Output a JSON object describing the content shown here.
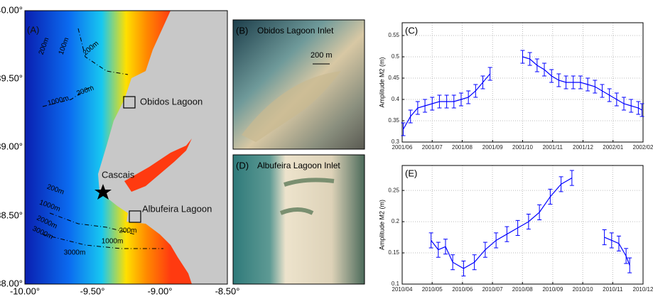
{
  "map": {
    "panel": "(A)",
    "places": [
      "Obidos Lagoon",
      "Cascais",
      "Albufeira Lagoon"
    ],
    "contours": [
      "200m",
      "100m",
      "200m",
      "200m",
      "1000m",
      "200m",
      "1000m",
      "2000m",
      "3000m",
      "200m",
      "1000m",
      "3000m"
    ],
    "x_labels": [
      "-10.00°",
      "-9.50°",
      "-9.00°",
      "-8.50°"
    ],
    "y_labels": [
      "40.00°",
      "39.50°",
      "39.00°",
      "38.50°",
      "38.00°"
    ]
  },
  "photos": [
    {
      "panel": "(B)",
      "title": "Obidos Lagoon Inlet",
      "scale": "200 m"
    },
    {
      "panel": "(D)",
      "title": "Albufeira Lagoon Inlet"
    }
  ],
  "chart_data": [
    {
      "type": "line",
      "panel": "(C)",
      "y_label": "Amplitude M2 (m)",
      "grid": true,
      "x": [
        2001.42,
        2001.44,
        2001.46,
        2001.48,
        2001.5,
        2001.52,
        2001.54,
        2001.56,
        2001.58,
        2001.6,
        2001.62,
        2001.64,
        2001.66,
        2001.7,
        2001.75,
        2001.77,
        2001.79,
        2001.81,
        2001.83,
        2001.85,
        2001.87,
        2001.89,
        2001.91,
        2001.93,
        2001.95,
        2001.97,
        2001.99,
        2002.01,
        2002.03,
        2002.05,
        2002.07,
        2002.08
      ],
      "series": [
        {
          "color": "#0000ff",
          "values": [
            0.33,
            0.36,
            0.38,
            0.385,
            0.39,
            0.395,
            0.395,
            0.395,
            0.4,
            0.405,
            0.42,
            0.44,
            0.46,
            null,
            0.5,
            0.495,
            0.48,
            0.47,
            0.455,
            0.445,
            0.44,
            0.44,
            0.44,
            0.435,
            0.43,
            0.42,
            0.41,
            0.4,
            0.39,
            0.385,
            0.38,
            0.375
          ],
          "errors": [
            0.015,
            0.015,
            0.015,
            0.015,
            0.015,
            0.015,
            0.015,
            0.015,
            0.015,
            0.015,
            0.015,
            0.015,
            0.015,
            null,
            0.015,
            0.015,
            0.015,
            0.015,
            0.015,
            0.015,
            0.015,
            0.015,
            0.015,
            0.015,
            0.015,
            0.015,
            0.015,
            0.015,
            0.015,
            0.015,
            0.015,
            0.015
          ]
        }
      ],
      "xlim": [
        2001.417,
        2002.083
      ],
      "ylim": [
        0.3,
        0.58
      ],
      "xticks": [
        {
          "value": 2001.417,
          "label": "2001/06"
        },
        {
          "value": 2001.5,
          "label": "2001/07"
        },
        {
          "value": 2001.583,
          "label": "2001/08"
        },
        {
          "value": 2001.667,
          "label": "2001/09"
        },
        {
          "value": 2001.75,
          "label": "2001/10"
        },
        {
          "value": 2001.833,
          "label": "2001/11"
        },
        {
          "value": 2001.917,
          "label": "2001/12"
        },
        {
          "value": 2002.0,
          "label": "2002/01"
        },
        {
          "value": 2002.083,
          "label": "2002/02"
        }
      ],
      "yticks": [
        0.3,
        0.35,
        0.4,
        0.45,
        0.5,
        0.55
      ]
    },
    {
      "type": "line",
      "panel": "(E)",
      "y_label": "Amplitude M2 (m)",
      "grid": true,
      "x": [
        2010.33,
        2010.35,
        2010.37,
        2010.39,
        2010.42,
        2010.45,
        2010.48,
        2010.51,
        2010.54,
        2010.57,
        2010.6,
        2010.63,
        2010.66,
        2010.69,
        2010.72,
        2010.77,
        2010.81,
        2010.83,
        2010.85,
        2010.87,
        2010.88
      ],
      "series": [
        {
          "color": "#0000ff",
          "values": [
            0.17,
            0.155,
            0.16,
            0.135,
            0.125,
            0.135,
            0.155,
            0.17,
            0.18,
            0.19,
            0.2,
            0.215,
            0.24,
            0.26,
            0.27,
            null,
            0.175,
            0.17,
            0.165,
            0.145,
            0.13
          ],
          "errors": [
            0.012,
            0.012,
            0.012,
            0.012,
            0.012,
            0.012,
            0.012,
            0.012,
            0.012,
            0.012,
            0.012,
            0.012,
            0.012,
            0.012,
            0.012,
            null,
            0.012,
            0.012,
            0.012,
            0.012,
            0.012
          ]
        }
      ],
      "xlim": [
        2010.25,
        2010.917
      ],
      "ylim": [
        0.1,
        0.29
      ],
      "xticks": [
        {
          "value": 2010.25,
          "label": "2010/04"
        },
        {
          "value": 2010.333,
          "label": "2010/05"
        },
        {
          "value": 2010.417,
          "label": "2010/06"
        },
        {
          "value": 2010.5,
          "label": "2010/07"
        },
        {
          "value": 2010.583,
          "label": "2010/08"
        },
        {
          "value": 2010.667,
          "label": "2010/09"
        },
        {
          "value": 2010.75,
          "label": "2010/10"
        },
        {
          "value": 2010.833,
          "label": "2010/11"
        },
        {
          "value": 2010.917,
          "label": "2010/12"
        }
      ],
      "yticks": [
        0.1,
        0.15,
        0.2,
        0.25
      ]
    }
  ]
}
